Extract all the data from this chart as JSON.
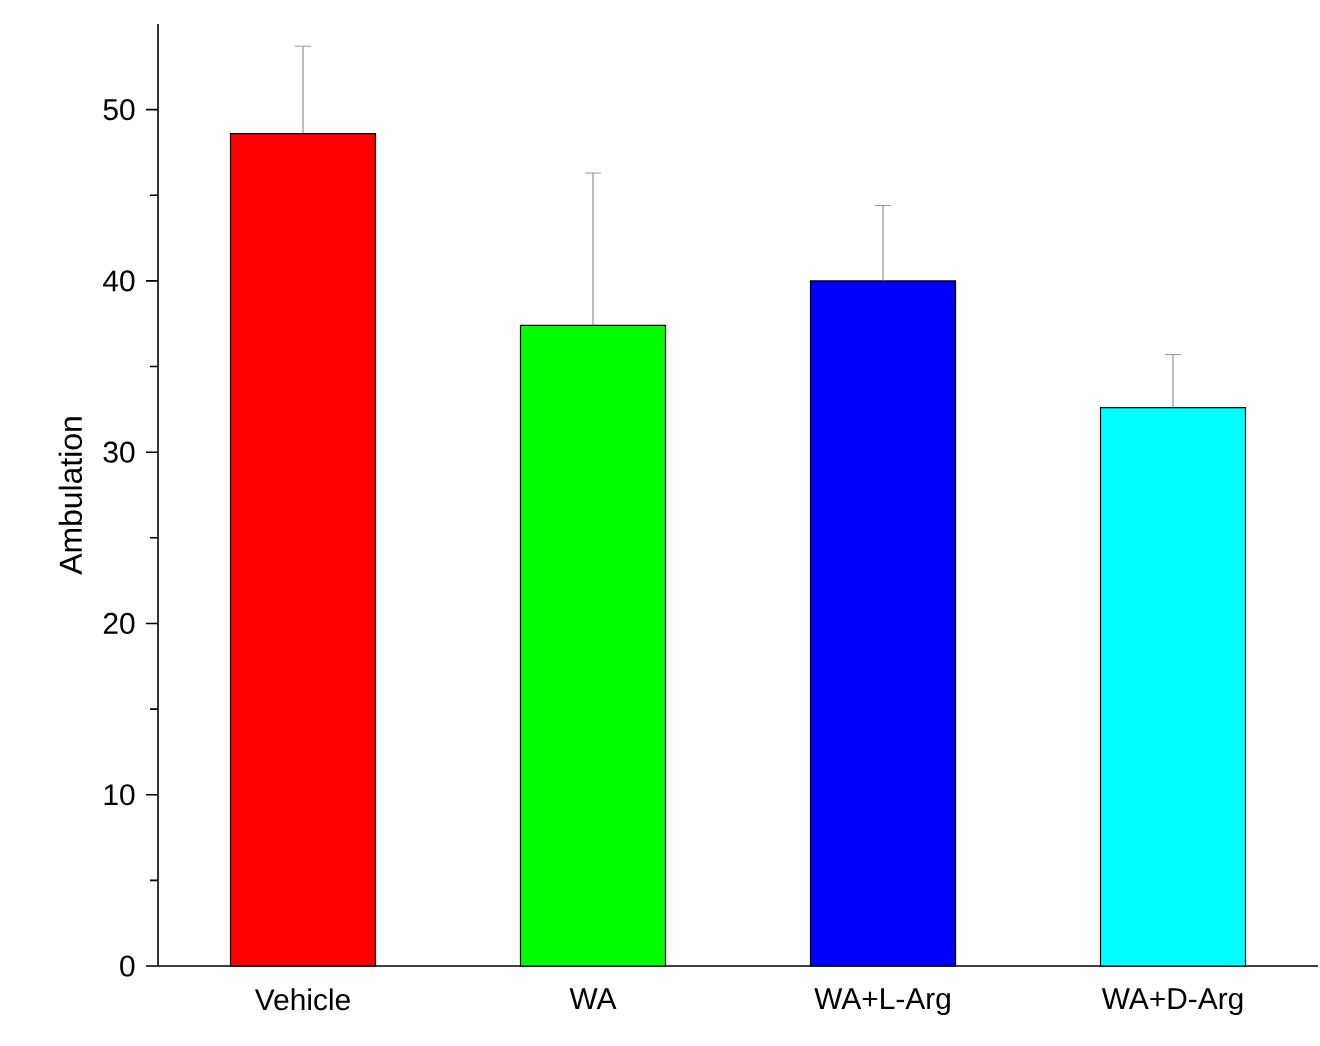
{
  "chart_data": {
    "type": "bar",
    "ylabel": "Ambulation",
    "categories": [
      "Vehicle",
      "WA",
      "WA+L-Arg",
      "WA+D-Arg"
    ],
    "values": [
      48.6,
      37.4,
      40.0,
      32.6
    ],
    "errors": [
      5.1,
      8.9,
      4.4,
      3.1
    ],
    "colors": [
      "#ff0000",
      "#00ff00",
      "#0000ff",
      "#00ffff"
    ],
    "ylim": [
      0,
      55
    ],
    "yticks": [
      0,
      10,
      20,
      30,
      40,
      50
    ]
  }
}
